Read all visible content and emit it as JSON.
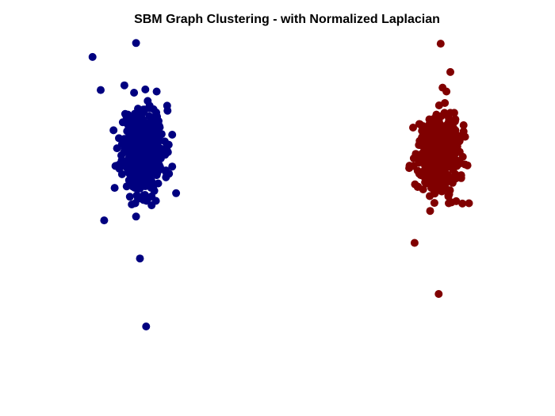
{
  "chart_data": {
    "type": "scatter",
    "title": "SBM Graph Clustering - with Normalized Laplacian",
    "xlabel": "",
    "ylabel": "",
    "axes_visible": false,
    "grid": false,
    "legend": "none",
    "xlim": [
      0,
      1
    ],
    "ylim": [
      0,
      1
    ],
    "marker": "filled-circle",
    "series": [
      {
        "color": "#000080",
        "seed": 11,
        "count": 480,
        "outliers": [
          [
            0.091,
            0.975
          ],
          [
            0.0,
            0.816
          ],
          [
            0.117,
            0.016
          ],
          [
            0.009,
            0.375
          ],
          [
            0.101,
            0.246
          ],
          [
            0.194,
            0.467
          ],
          [
            -0.021,
            0.928
          ]
        ],
        "center": [
          0.109,
          0.614
        ],
        "spread": [
          0.027,
          0.075
        ],
        "x": [],
        "y": []
      },
      {
        "color": "#800000",
        "seed": 29,
        "count": 480,
        "outliers": [
          [
            0.875,
            0.973
          ],
          [
            0.87,
            0.126
          ],
          [
            0.808,
            0.299
          ],
          [
            0.948,
            0.433
          ],
          [
            0.9,
            0.877
          ]
        ],
        "center": [
          0.867,
          0.602
        ],
        "spread": [
          0.027,
          0.065
        ],
        "x": [],
        "y": []
      }
    ]
  }
}
